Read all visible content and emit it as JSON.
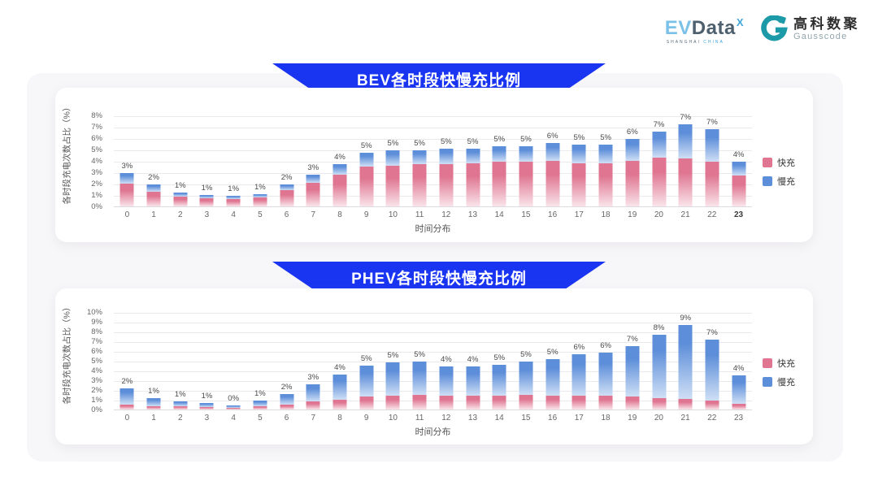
{
  "page": {
    "background": "#ffffff",
    "panel_background": "#f7f6f8"
  },
  "header": {
    "evdata": {
      "ev": "EV",
      "data": "Data",
      "sup": "X",
      "subtitle_left": "SHANGHAI",
      "subtitle_right": "CHINA"
    },
    "gausscode": {
      "name_cn": "高科数聚",
      "name_en": "Gausscode",
      "icon": "gausscode-g-icon",
      "icon_color": "#1d9aa8"
    }
  },
  "colors": {
    "banner_blue": "#1a35f2",
    "fast_pink": "#df7591",
    "fast_pink_light": "#f9e4ea",
    "slow_blue": "#5d8ed9",
    "slow_blue_light": "#cfdff5",
    "gridline": "#eaeaee"
  },
  "chart_data": [
    {
      "id": "bev",
      "type": "bar",
      "stacked": true,
      "title": "BEV各时段快慢充比例",
      "xlabel": "时间分布",
      "ylabel": "各时段充电次数占比（%）",
      "ylim": [
        0,
        8
      ],
      "ytick_step": 1,
      "ytick_suffix": "%",
      "grid": true,
      "legend_position": "right",
      "x_emphasis": "23",
      "categories": [
        "0",
        "1",
        "2",
        "3",
        "4",
        "5",
        "6",
        "7",
        "8",
        "9",
        "10",
        "11",
        "12",
        "13",
        "14",
        "15",
        "16",
        "17",
        "18",
        "19",
        "20",
        "21",
        "22",
        "23"
      ],
      "bar_labels": [
        "3%",
        "2%",
        "1%",
        "1%",
        "1%",
        "1%",
        "2%",
        "3%",
        "4%",
        "5%",
        "5%",
        "5%",
        "5%",
        "5%",
        "5%",
        "5%",
        "6%",
        "5%",
        "5%",
        "6%",
        "7%",
        "7%",
        "7%",
        "4%"
      ],
      "legend": [
        {
          "name": "快充",
          "color": "#df7591"
        },
        {
          "name": "慢充",
          "color": "#5d8ed9"
        }
      ],
      "series": [
        {
          "name": "快充",
          "color": "#df7591",
          "color_light": "#f9e4ea",
          "values": [
            2.0,
            1.3,
            0.85,
            0.7,
            0.65,
            0.8,
            1.4,
            2.1,
            2.8,
            3.5,
            3.6,
            3.7,
            3.7,
            3.8,
            3.9,
            3.9,
            4.0,
            3.8,
            3.8,
            4.0,
            4.3,
            4.2,
            3.9,
            2.7
          ]
        },
        {
          "name": "慢充",
          "color": "#5d8ed9",
          "color_light": "#cfdff5",
          "values": [
            0.9,
            0.6,
            0.35,
            0.3,
            0.25,
            0.3,
            0.5,
            0.7,
            0.9,
            1.2,
            1.3,
            1.2,
            1.4,
            1.3,
            1.4,
            1.4,
            1.6,
            1.6,
            1.6,
            1.9,
            2.3,
            3.0,
            2.9,
            1.2
          ]
        }
      ]
    },
    {
      "id": "phev",
      "type": "bar",
      "stacked": true,
      "title": "PHEV各时段快慢充比例",
      "xlabel": "时间分布",
      "ylabel": "各时段充电次数占比（%）",
      "ylim": [
        0,
        10
      ],
      "ytick_step": 1,
      "ytick_suffix": "%",
      "grid": true,
      "legend_position": "right",
      "x_emphasis": "",
      "categories": [
        "0",
        "1",
        "2",
        "3",
        "4",
        "5",
        "6",
        "7",
        "8",
        "9",
        "10",
        "11",
        "12",
        "13",
        "14",
        "15",
        "16",
        "17",
        "18",
        "19",
        "20",
        "21",
        "22",
        "23"
      ],
      "bar_labels": [
        "2%",
        "1%",
        "1%",
        "1%",
        "0%",
        "1%",
        "2%",
        "3%",
        "4%",
        "5%",
        "5%",
        "5%",
        "4%",
        "4%",
        "5%",
        "5%",
        "5%",
        "6%",
        "6%",
        "7%",
        "8%",
        "9%",
        "7%",
        "4%"
      ],
      "legend": [
        {
          "name": "快充",
          "color": "#df7591"
        },
        {
          "name": "慢充",
          "color": "#5d8ed9"
        }
      ],
      "series": [
        {
          "name": "快充",
          "color": "#df7591",
          "color_light": "#f9e4ea",
          "values": [
            0.5,
            0.35,
            0.3,
            0.25,
            0.2,
            0.3,
            0.5,
            0.8,
            1.0,
            1.3,
            1.4,
            1.5,
            1.4,
            1.4,
            1.4,
            1.5,
            1.4,
            1.4,
            1.4,
            1.3,
            1.2,
            1.1,
            0.9,
            0.55
          ]
        },
        {
          "name": "慢充",
          "color": "#5d8ed9",
          "color_light": "#cfdff5",
          "values": [
            1.7,
            0.85,
            0.5,
            0.45,
            0.25,
            0.6,
            1.1,
            1.8,
            2.6,
            3.2,
            3.4,
            3.4,
            3.0,
            3.0,
            3.2,
            3.4,
            3.8,
            4.3,
            4.4,
            5.2,
            6.5,
            7.6,
            6.3,
            2.95
          ]
        }
      ]
    }
  ]
}
